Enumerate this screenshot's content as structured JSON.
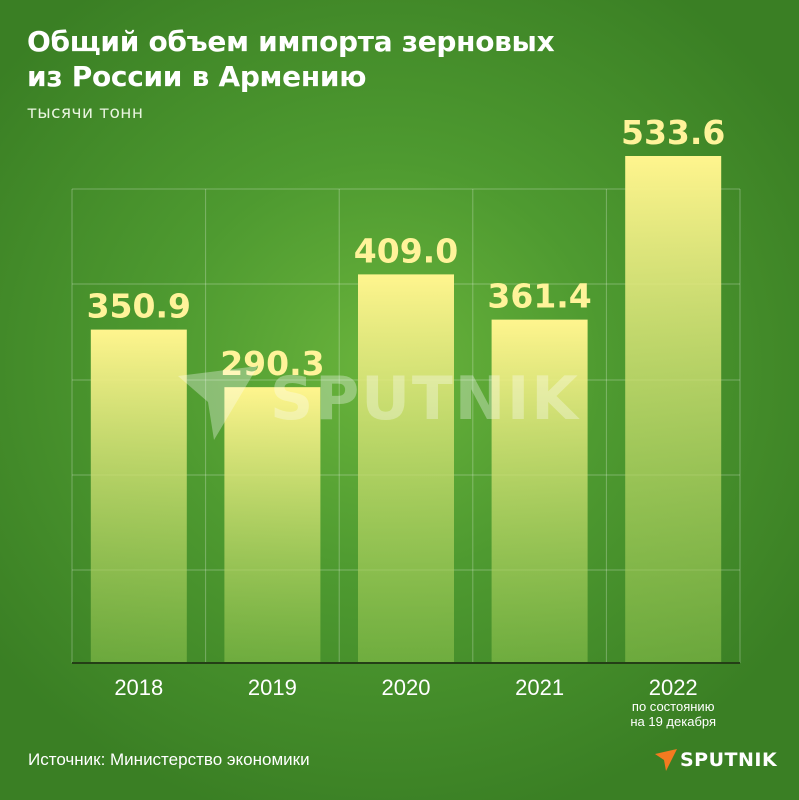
{
  "title": "Общий объем импорта зерновых\nиз России в Армению",
  "unit": "тысячи тонн",
  "source": "Источник: Министерство экономики",
  "logo_text": "SPUTNIK",
  "watermark_text": "SPUTNIK",
  "colors": {
    "bar_top": "#fff58e",
    "bar_bottom": "#8fc44e",
    "value_label": "#fff39a",
    "logo_accent": "#f47a20"
  },
  "chart_data": {
    "type": "bar",
    "categories": [
      "2018",
      "2019",
      "2020",
      "2021",
      "2022"
    ],
    "category_notes": [
      "",
      "",
      "",
      "",
      "по состоянию\nна 19 декабря"
    ],
    "values": [
      350.9,
      290.3,
      409.0,
      361.4,
      533.6
    ],
    "value_labels": [
      "350.9",
      "290.3",
      "409.0",
      "361.4",
      "533.6"
    ],
    "ylabel": "тысячи тонн",
    "ylim": [
      0,
      533.6
    ],
    "grid": true,
    "legend": "none"
  }
}
